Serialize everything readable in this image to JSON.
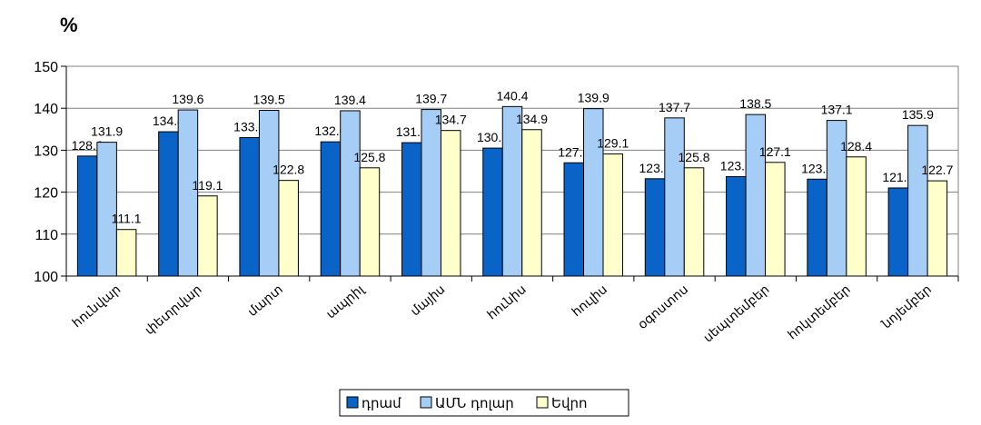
{
  "chart_data": {
    "type": "bar",
    "unit_label": "%",
    "categories": [
      "հունվար",
      "փետրվար",
      "մարտ",
      "ապրիլ",
      "մայիս",
      "հունիս",
      "հուլիս",
      "օգոստոս",
      "սեպտեմբեր",
      "հոկտեմբեր",
      "նոյեմբեր"
    ],
    "series": [
      {
        "name": "դրամ",
        "color": "#0a64c8",
        "values": [
          128.6,
          134.4,
          133.0,
          132.0,
          131.8,
          130.5,
          127.0,
          123.2,
          123.7,
          123.1,
          121.0
        ]
      },
      {
        "name": "ԱՄՆ դոլար",
        "color": "#a6cdf5",
        "values": [
          131.9,
          139.6,
          139.5,
          139.4,
          139.7,
          140.4,
          139.9,
          137.7,
          138.5,
          137.1,
          135.9
        ]
      },
      {
        "name": "Եվրո",
        "color": "#ffffcc",
        "values": [
          111.1,
          119.1,
          122.8,
          125.8,
          134.7,
          134.9,
          129.1,
          125.8,
          127.1,
          128.4,
          122.7
        ]
      }
    ],
    "ylim": [
      100,
      150
    ],
    "yticks": [
      100,
      110,
      120,
      130,
      140,
      150
    ],
    "grid": true,
    "legend": "bottom-center"
  }
}
